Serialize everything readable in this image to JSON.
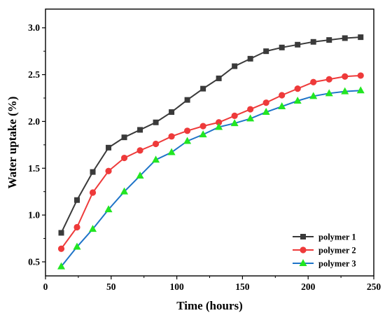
{
  "chart_data": {
    "type": "line",
    "title": "",
    "xlabel": "Time (hours)",
    "ylabel": "Water uptake (%)",
    "xlim": [
      0,
      250
    ],
    "ylim": [
      0.35,
      3.2
    ],
    "xticks": [
      0,
      50,
      100,
      150,
      200,
      250
    ],
    "yticks": [
      0.5,
      1.0,
      1.5,
      2.0,
      2.5,
      3.0
    ],
    "xtick_labels": [
      "0",
      "50",
      "100",
      "150",
      "200",
      "250"
    ],
    "ytick_labels": [
      "0.5",
      "1.0",
      "1.5",
      "2.0",
      "2.5",
      "3.0"
    ],
    "grid": false,
    "legend_position": "bottom-right",
    "x": [
      12,
      24,
      36,
      48,
      60,
      72,
      84,
      96,
      108,
      120,
      132,
      144,
      156,
      168,
      180,
      192,
      204,
      216,
      228,
      240
    ],
    "series": [
      {
        "name": "polymer 1",
        "color": "#3a3a3a",
        "marker": "square",
        "values": [
          0.81,
          1.16,
          1.46,
          1.72,
          1.83,
          1.91,
          1.99,
          2.1,
          2.23,
          2.35,
          2.46,
          2.59,
          2.67,
          2.75,
          2.79,
          2.82,
          2.85,
          2.87,
          2.89,
          2.9
        ]
      },
      {
        "name": "polymer 2",
        "color": "#ee3a3a",
        "marker": "circle",
        "values": [
          0.64,
          0.87,
          1.24,
          1.47,
          1.61,
          1.69,
          1.76,
          1.84,
          1.9,
          1.95,
          1.99,
          2.06,
          2.13,
          2.2,
          2.28,
          2.35,
          2.42,
          2.45,
          2.48,
          2.49
        ]
      },
      {
        "name": "polymer 3",
        "color": "#1e74c8",
        "marker": "triangle",
        "marker_color": "#22e622",
        "values": [
          0.45,
          0.66,
          0.85,
          1.06,
          1.25,
          1.42,
          1.59,
          1.67,
          1.79,
          1.86,
          1.94,
          1.98,
          2.03,
          2.1,
          2.16,
          2.22,
          2.27,
          2.3,
          2.32,
          2.33
        ]
      }
    ]
  }
}
